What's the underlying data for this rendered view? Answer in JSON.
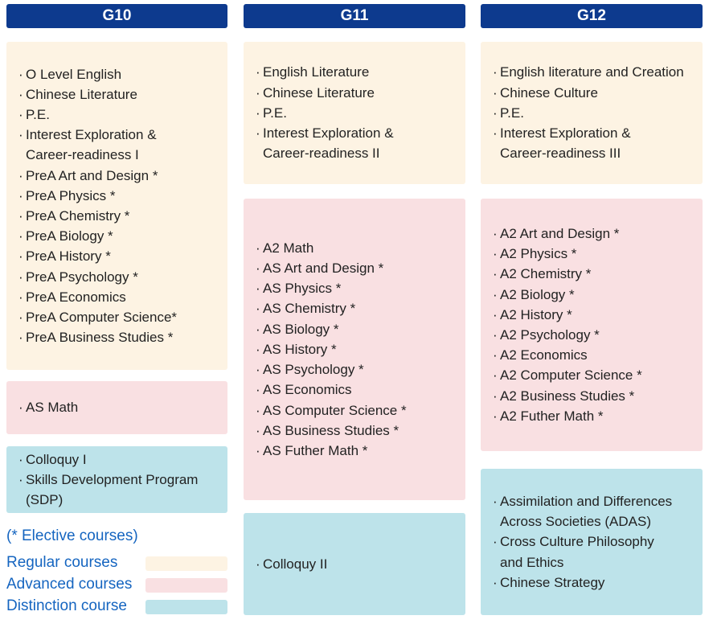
{
  "columns": {
    "g10": {
      "title": "G10",
      "regular": [
        "O Level English",
        "Chinese Literature",
        "P.E.",
        "Interest Exploration &\nCareer-readiness I",
        "PreA Art and Design *",
        "PreA Physics *",
        "PreA Chemistry *",
        "PreA Biology *",
        "PreA History *",
        "PreA Psychology *",
        "PreA  Economics",
        "PreA Computer Science*",
        "PreA Business Studies *"
      ],
      "advanced": [
        "AS Math"
      ],
      "distinction": [
        "Colloquy I",
        "Skills Development Program (SDP)"
      ]
    },
    "g11": {
      "title": "G11",
      "regular": [
        "English Literature",
        "Chinese Literature",
        "P.E.",
        "Interest Exploration &\nCareer-readiness II"
      ],
      "advanced": [
        "A2 Math",
        "AS Art and Design *",
        "AS Physics *",
        "AS Chemistry *",
        "AS Biology *",
        "AS History *",
        "AS Psychology *",
        "AS Economics",
        "AS Computer Science *",
        "AS Business Studies *",
        "AS Futher Math *"
      ],
      "distinction": [
        "Colloquy II"
      ]
    },
    "g12": {
      "title": "G12",
      "regular": [
        "English literature and Creation",
        "Chinese Culture",
        "P.E.",
        "Interest Exploration &\nCareer-readiness III"
      ],
      "advanced": [
        "A2 Art and Design *",
        "A2 Physics *",
        "A2 Chemistry *",
        "A2 Biology *",
        "A2 History *",
        "A2 Psychology *",
        "A2 Economics",
        "A2 Computer Science *",
        "A2 Business Studies *",
        "A2 Futher Math *"
      ],
      "distinction": [
        "Assimilation and Differences\nAcross Societies (ADAS)",
        "Cross Culture Philosophy\nand Ethics",
        "Chinese Strategy"
      ]
    }
  },
  "legend": {
    "note": "(* Elective courses)",
    "regular_label": "Regular courses",
    "advanced_label": "Advanced courses",
    "distinction_label": "Distinction course"
  },
  "colors": {
    "header": "#0d3a8e",
    "regular": "#fdf3e3",
    "advanced": "#f9e0e2",
    "distinction": "#bde3ea",
    "legend_text": "#1565c0"
  }
}
